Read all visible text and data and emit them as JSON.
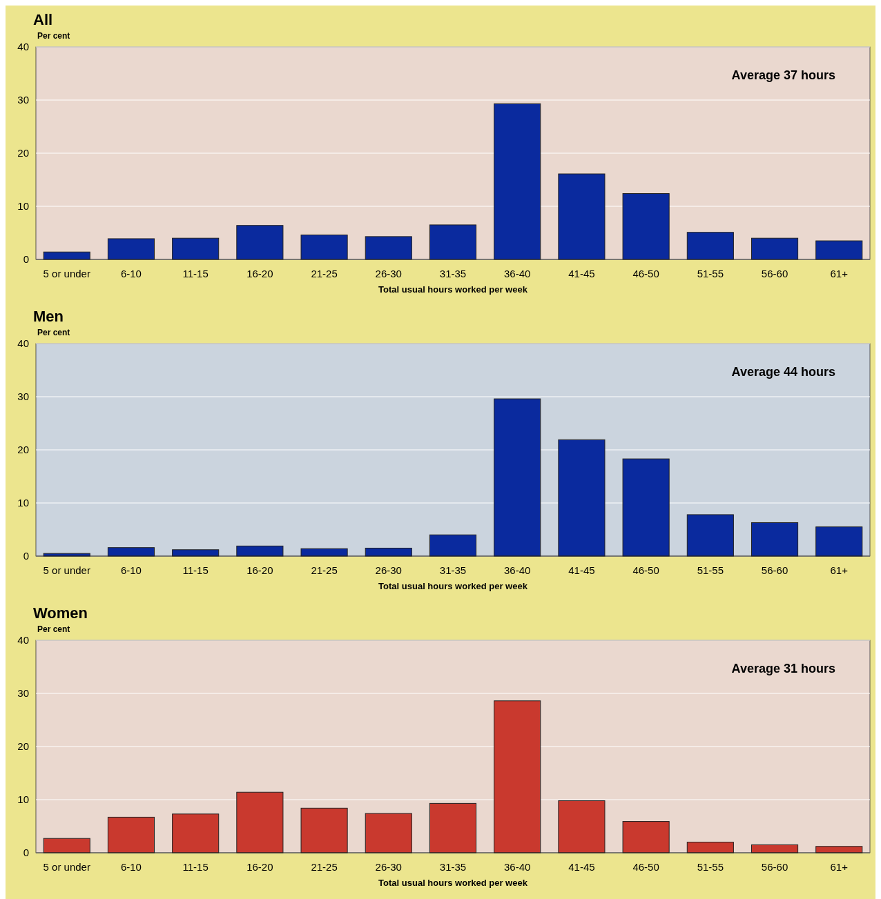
{
  "chart_data": [
    {
      "type": "bar",
      "title": "All",
      "ylabel": "Per cent",
      "xlabel": "Total usual hours worked per week",
      "categories": [
        "5 or under",
        "6-10",
        "11-15",
        "16-20",
        "21-25",
        "26-30",
        "31-35",
        "36-40",
        "41-45",
        "46-50",
        "51-55",
        "56-60",
        "61+"
      ],
      "color": "#0a2a9e",
      "values": [
        1.4,
        3.9,
        4.0,
        6.4,
        4.6,
        4.3,
        6.5,
        29.3,
        16.1,
        12.4,
        5.1,
        4.0,
        3.5
      ],
      "ylim": [
        0,
        40
      ],
      "yticks": [
        0,
        10,
        20,
        30,
        40
      ],
      "grid": "y",
      "annotations": [
        "Average 37 hours"
      ]
    },
    {
      "type": "bar",
      "title": "Men",
      "ylabel": "Per cent",
      "xlabel": "Total usual hours worked per week",
      "categories": [
        "5 or under",
        "6-10",
        "11-15",
        "16-20",
        "21-25",
        "26-30",
        "31-35",
        "36-40",
        "41-45",
        "46-50",
        "51-55",
        "56-60",
        "61+"
      ],
      "color": "#0a2a9e",
      "values": [
        0.5,
        1.6,
        1.2,
        1.9,
        1.4,
        1.5,
        4.0,
        29.6,
        21.9,
        18.3,
        7.8,
        6.3,
        5.5
      ],
      "ylim": [
        0,
        40
      ],
      "yticks": [
        0,
        10,
        20,
        30,
        40
      ],
      "grid": "y",
      "annotations": [
        "Average 44 hours"
      ]
    },
    {
      "type": "bar",
      "title": "Women",
      "ylabel": "Per cent",
      "xlabel": "Total usual hours worked per week",
      "categories": [
        "5 or under",
        "6-10",
        "11-15",
        "16-20",
        "21-25",
        "26-30",
        "31-35",
        "36-40",
        "41-45",
        "46-50",
        "51-55",
        "56-60",
        "61+"
      ],
      "color": "#c9392e",
      "values": [
        2.7,
        6.7,
        7.3,
        11.4,
        8.4,
        7.4,
        9.3,
        28.6,
        9.8,
        5.9,
        2.0,
        1.5,
        1.2
      ],
      "ylim": [
        0,
        40
      ],
      "yticks": [
        0,
        10,
        20,
        30,
        40
      ],
      "grid": "y",
      "annotations": [
        "Average 31 hours"
      ]
    }
  ]
}
